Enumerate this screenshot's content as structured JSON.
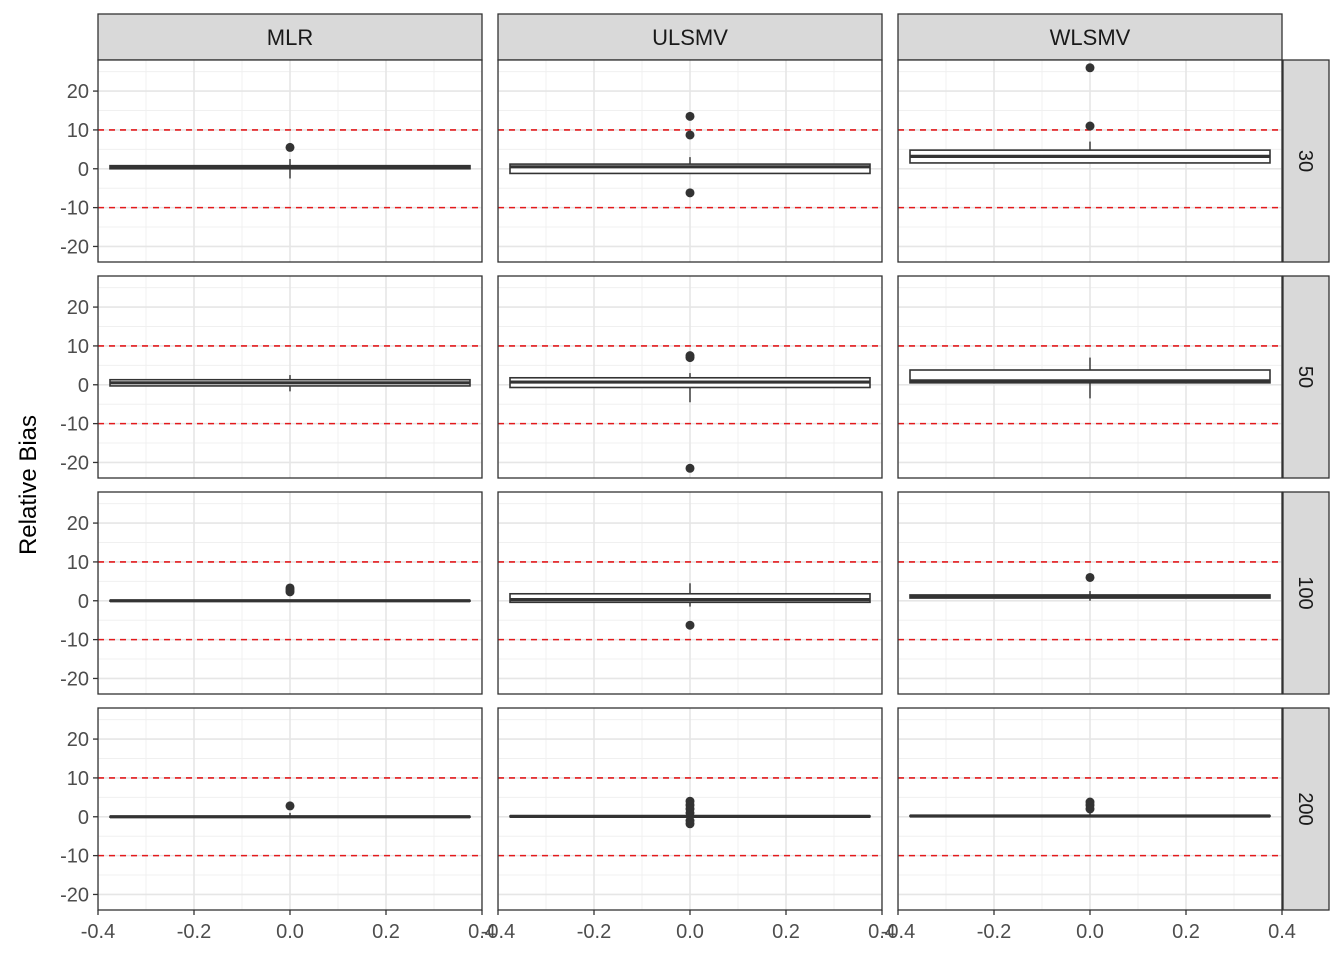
{
  "chart_data": {
    "type": "boxplot",
    "ylabel": "Relative Bias",
    "xlabel": "",
    "xlim": [
      -0.4,
      0.4
    ],
    "ylim": [
      -24,
      28
    ],
    "x_ticks": [
      "-0.4",
      "-0.2",
      "0.0",
      "0.2",
      "0.4"
    ],
    "x_tick_values": [
      -0.4,
      -0.2,
      0.0,
      0.2,
      0.4
    ],
    "y_ticks": [
      "-20",
      "-10",
      "0",
      "10",
      "20"
    ],
    "y_tick_values": [
      -20,
      -10,
      0,
      10,
      20
    ],
    "reference_lines": [
      10,
      -10
    ],
    "reference_color": "#e31a1c",
    "box_x_range": [
      -0.375,
      0.375
    ],
    "grid": true,
    "col_facets": [
      "MLR",
      "ULSMV",
      "WLSMV"
    ],
    "row_facets": [
      "30",
      "50",
      "100",
      "200"
    ],
    "panels": [
      [
        {
          "method": "MLR",
          "n": "30",
          "q1": 0.0,
          "median": 0.4,
          "q3": 0.8,
          "whisker_low": -2.5,
          "whisker_high": 2.5,
          "outliers": [
            5.5
          ]
        },
        {
          "method": "ULSMV",
          "n": "30",
          "q1": -1.2,
          "median": 0.5,
          "q3": 1.2,
          "whisker_low": -1.2,
          "whisker_high": 3.0,
          "outliers": [
            13.5,
            8.7,
            -6.2
          ]
        },
        {
          "method": "WLSMV",
          "n": "30",
          "q1": 1.5,
          "median": 3.2,
          "q3": 4.8,
          "whisker_low": 1.5,
          "whisker_high": 7.0,
          "outliers": [
            26.0,
            11.0
          ]
        }
      ],
      [
        {
          "method": "MLR",
          "n": "50",
          "q1": -0.3,
          "median": 0.5,
          "q3": 1.3,
          "whisker_low": -1.7,
          "whisker_high": 2.5,
          "outliers": []
        },
        {
          "method": "ULSMV",
          "n": "50",
          "q1": -0.7,
          "median": 0.7,
          "q3": 1.8,
          "whisker_low": -4.5,
          "whisker_high": 3.0,
          "outliers": [
            7.5,
            7.0,
            -21.5
          ]
        },
        {
          "method": "WLSMV",
          "n": "50",
          "q1": 0.5,
          "median": 1.0,
          "q3": 3.8,
          "whisker_low": -3.5,
          "whisker_high": 7.0,
          "outliers": []
        }
      ],
      [
        {
          "method": "MLR",
          "n": "100",
          "q1": -0.1,
          "median": 0.0,
          "q3": 0.1,
          "whisker_low": -0.2,
          "whisker_high": 0.3,
          "outliers": [
            3.3,
            2.8,
            2.3
          ]
        },
        {
          "method": "ULSMV",
          "n": "100",
          "q1": -0.4,
          "median": 0.3,
          "q3": 1.8,
          "whisker_low": -1.5,
          "whisker_high": 4.5,
          "outliers": [
            -6.3
          ]
        },
        {
          "method": "WLSMV",
          "n": "100",
          "q1": 0.7,
          "median": 1.1,
          "q3": 1.5,
          "whisker_low": 0.0,
          "whisker_high": 2.5,
          "outliers": [
            6.0
          ]
        }
      ],
      [
        {
          "method": "MLR",
          "n": "200",
          "q1": -0.1,
          "median": 0.0,
          "q3": 0.1,
          "whisker_low": -0.2,
          "whisker_high": 1.0,
          "outliers": [
            2.8
          ]
        },
        {
          "method": "ULSMV",
          "n": "200",
          "q1": 0.0,
          "median": 0.1,
          "q3": 0.2,
          "whisker_low": -0.2,
          "whisker_high": 0.8,
          "outliers": [
            4.0,
            3.0,
            2.0,
            1.0,
            -1.0,
            -1.8
          ]
        },
        {
          "method": "WLSMV",
          "n": "200",
          "q1": 0.1,
          "median": 0.2,
          "q3": 0.3,
          "whisker_low": 0.0,
          "whisker_high": 1.5,
          "outliers": [
            3.8,
            3.0,
            2.0
          ]
        }
      ]
    ]
  }
}
